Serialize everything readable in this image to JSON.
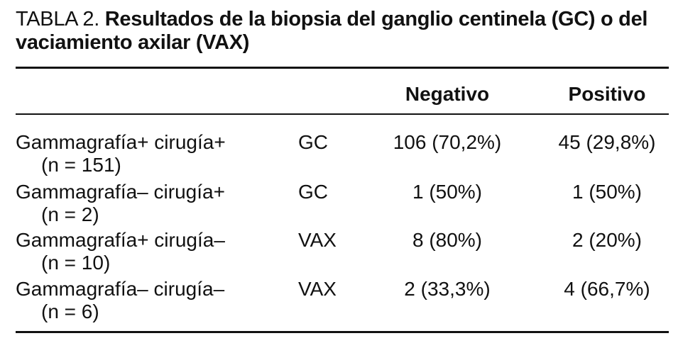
{
  "caption": {
    "label": "TABLA 2.",
    "title": "Resultados de la biopsia del ganglio centinela (GC) o del vaciamiento axilar (VAX)"
  },
  "columns": {
    "negative": "Negativo",
    "positive": "Positivo"
  },
  "rows": [
    {
      "description": "Gammagrafía+ cirugía+",
      "n": "(n = 151)",
      "procedure": "GC",
      "negative": "106 (70,2%)",
      "positive": "45 (29,8%)"
    },
    {
      "description": "Gammagrafía– cirugía+",
      "n": "(n = 2)",
      "procedure": "GC",
      "negative": "1 (50%)",
      "positive": "1 (50%)"
    },
    {
      "description": "Gammagrafía+ cirugía–",
      "n": "(n = 10)",
      "procedure": "VAX",
      "negative": "8 (80%)",
      "positive": "2 (20%)"
    },
    {
      "description": "Gammagrafía– cirugía–",
      "n": "(n = 6)",
      "procedure": "VAX",
      "negative": "2 (33,3%)",
      "positive": "4 (66,7%)"
    }
  ]
}
